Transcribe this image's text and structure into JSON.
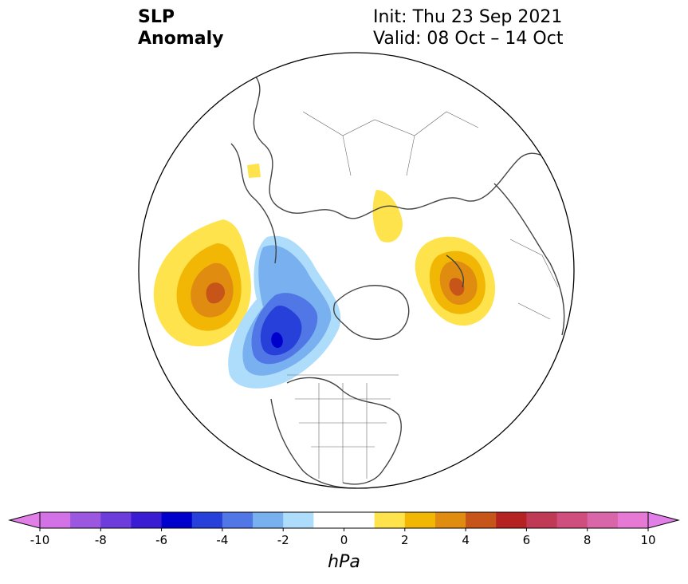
{
  "title": {
    "line1": "SLP",
    "line2": "Anomaly",
    "init": "Init: Thu 23 Sep 2021",
    "valid": "Valid: 08 Oct – 14 Oct"
  },
  "colorbar": {
    "unit": "hPa",
    "tick_labels": [
      "-10",
      "-8",
      "-6",
      "-4",
      "-2",
      "0",
      "2",
      "4",
      "6",
      "8",
      "10"
    ],
    "levels": [
      -10,
      -9,
      -8,
      -7,
      -6,
      -5,
      -4,
      -3,
      -2,
      -1,
      1,
      2,
      3,
      4,
      5,
      6,
      7,
      8,
      9,
      10
    ],
    "colors": [
      "#d371e6",
      "#9b57e0",
      "#6d3ddb",
      "#3a1cd2",
      "#0000cd",
      "#2640d9",
      "#5177e6",
      "#79b0ef",
      "#aedcfb",
      "#ffffff",
      "#fee34d",
      "#f2b705",
      "#e08c10",
      "#c75418",
      "#b42322",
      "#c03a55",
      "#cf4e7d",
      "#d966a8",
      "#e679d3"
    ],
    "under_color": "#e27ee8",
    "over_color": "#e27ee8"
  },
  "map": {
    "projection": "north-polar-stereographic",
    "anomalies": [
      {
        "name": "north-pacific-high",
        "peak_hPa": 5,
        "sign": "positive"
      },
      {
        "name": "gulf-of-alaska-low",
        "peak_hPa": -6,
        "sign": "negative"
      },
      {
        "name": "scandinavia-high",
        "peak_hPa": 5,
        "sign": "positive"
      },
      {
        "name": "eastern-siberia-high",
        "peak_hPa": 1,
        "sign": "positive"
      },
      {
        "name": "kara-sea-high",
        "peak_hPa": 1,
        "sign": "positive"
      }
    ]
  }
}
